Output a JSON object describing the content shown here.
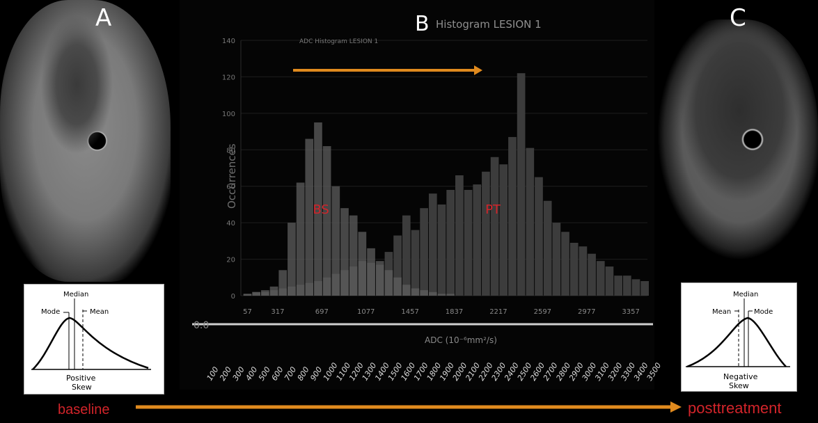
{
  "labels": {
    "a": "A",
    "b": "B",
    "c": "C"
  },
  "footer": {
    "left": "baseline",
    "right": "posttreatment"
  },
  "skew_left": {
    "top": "Median",
    "left": "Mode",
    "right": "Mean",
    "bottom1": "Positive",
    "bottom2": "Skew"
  },
  "skew_right": {
    "top": "Median",
    "left": "Mean",
    "right": "Mode",
    "bottom1": "Negative",
    "bottom2": "Skew"
  },
  "colors": {
    "accent_arrow": "#e08a1e",
    "label_red": "#d2242a"
  },
  "chart_data": {
    "type": "bar",
    "title": "Histogram LESION 1",
    "subtitle": "ADC Histogram LESION 1",
    "ylabel": "Occurrences",
    "xlabel": "ADC (10⁻⁶mm²/s)",
    "ylim": [
      0,
      140
    ],
    "xlim": [
      0,
      3500
    ],
    "grid": true,
    "y_ticks": [
      0,
      20,
      40,
      60,
      80,
      100,
      120,
      140
    ],
    "x_ticks": [
      57,
      317,
      697,
      1077,
      1457,
      1837,
      2217,
      2597,
      2977,
      3357
    ],
    "bottom_ticks": [
      100,
      200,
      300,
      400,
      500,
      600,
      700,
      800,
      900,
      1000,
      1100,
      1200,
      1300,
      1400,
      1500,
      1600,
      1700,
      1800,
      1900,
      2000,
      2100,
      2200,
      2300,
      2400,
      2500,
      2600,
      2700,
      2800,
      2900,
      3000,
      3100,
      3200,
      3300,
      3400,
      3500
    ],
    "annotations": [
      {
        "text": "BS",
        "x": 690,
        "y": 45
      },
      {
        "text": "PT",
        "x": 2170,
        "y": 45
      }
    ],
    "series": [
      {
        "name": "BS",
        "x": [
          57,
          133,
          209,
          285,
          361,
          437,
          513,
          589,
          665,
          741,
          817,
          893,
          969,
          1045,
          1121,
          1197,
          1273,
          1349,
          1425,
          1501,
          1577,
          1653,
          1729,
          1805
        ],
        "values": [
          1,
          2,
          3,
          5,
          14,
          40,
          62,
          86,
          95,
          82,
          60,
          48,
          44,
          35,
          26,
          19,
          14,
          10,
          6,
          4,
          3,
          2,
          1,
          1
        ]
      },
      {
        "name": "PT",
        "x": [
          57,
          133,
          209,
          285,
          361,
          437,
          513,
          589,
          665,
          741,
          817,
          893,
          969,
          1045,
          1121,
          1197,
          1273,
          1349,
          1425,
          1501,
          1577,
          1653,
          1729,
          1805,
          1881,
          1957,
          2033,
          2109,
          2185,
          2261,
          2337,
          2413,
          2489,
          2565,
          2641,
          2717,
          2793,
          2869,
          2945,
          3021,
          3097,
          3173,
          3249,
          3325,
          3401,
          3477
        ],
        "values": [
          1,
          2,
          2,
          3,
          4,
          5,
          6,
          7,
          8,
          10,
          12,
          14,
          16,
          19,
          18,
          17,
          24,
          33,
          44,
          36,
          48,
          56,
          50,
          58,
          66,
          58,
          61,
          68,
          76,
          72,
          87,
          122,
          81,
          65,
          52,
          40,
          35,
          29,
          27,
          23,
          19,
          16,
          11,
          11,
          9,
          8
        ]
      }
    ]
  }
}
